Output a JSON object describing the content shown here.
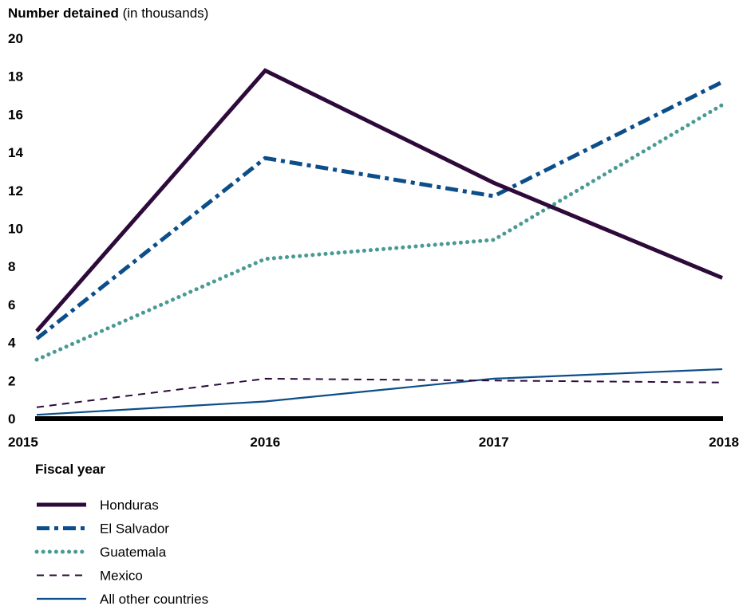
{
  "chart_data": {
    "type": "line",
    "ylabel_bold": "Number detained",
    "ylabel_rest": " (in thousands)",
    "xlabel": "Fiscal year",
    "x": [
      "2015",
      "2016",
      "2017",
      "2018"
    ],
    "ylim": [
      0,
      20
    ],
    "yticks": [
      "0",
      "2",
      "4",
      "6",
      "8",
      "10",
      "12",
      "14",
      "16",
      "18",
      "20"
    ],
    "grid": false,
    "legend_position": "bottom-left",
    "series": [
      {
        "name": "Honduras",
        "values": [
          4.6,
          18.3,
          12.4,
          7.4
        ],
        "color": "#2d0a3a",
        "style": "solid-thick"
      },
      {
        "name": "El Salvador",
        "values": [
          4.2,
          13.7,
          11.7,
          17.7
        ],
        "color": "#0b4e8a",
        "style": "dash-dot"
      },
      {
        "name": "Guatemala",
        "values": [
          3.1,
          8.4,
          9.4,
          16.5
        ],
        "color": "#4a9a94",
        "style": "dotted"
      },
      {
        "name": "Mexico",
        "values": [
          0.6,
          2.1,
          2.0,
          1.9
        ],
        "color": "#2d0a3a",
        "style": "dashed"
      },
      {
        "name": "All other countries",
        "values": [
          0.2,
          0.9,
          2.1,
          2.6
        ],
        "color": "#0b4e8a",
        "style": "solid-thin"
      }
    ]
  }
}
